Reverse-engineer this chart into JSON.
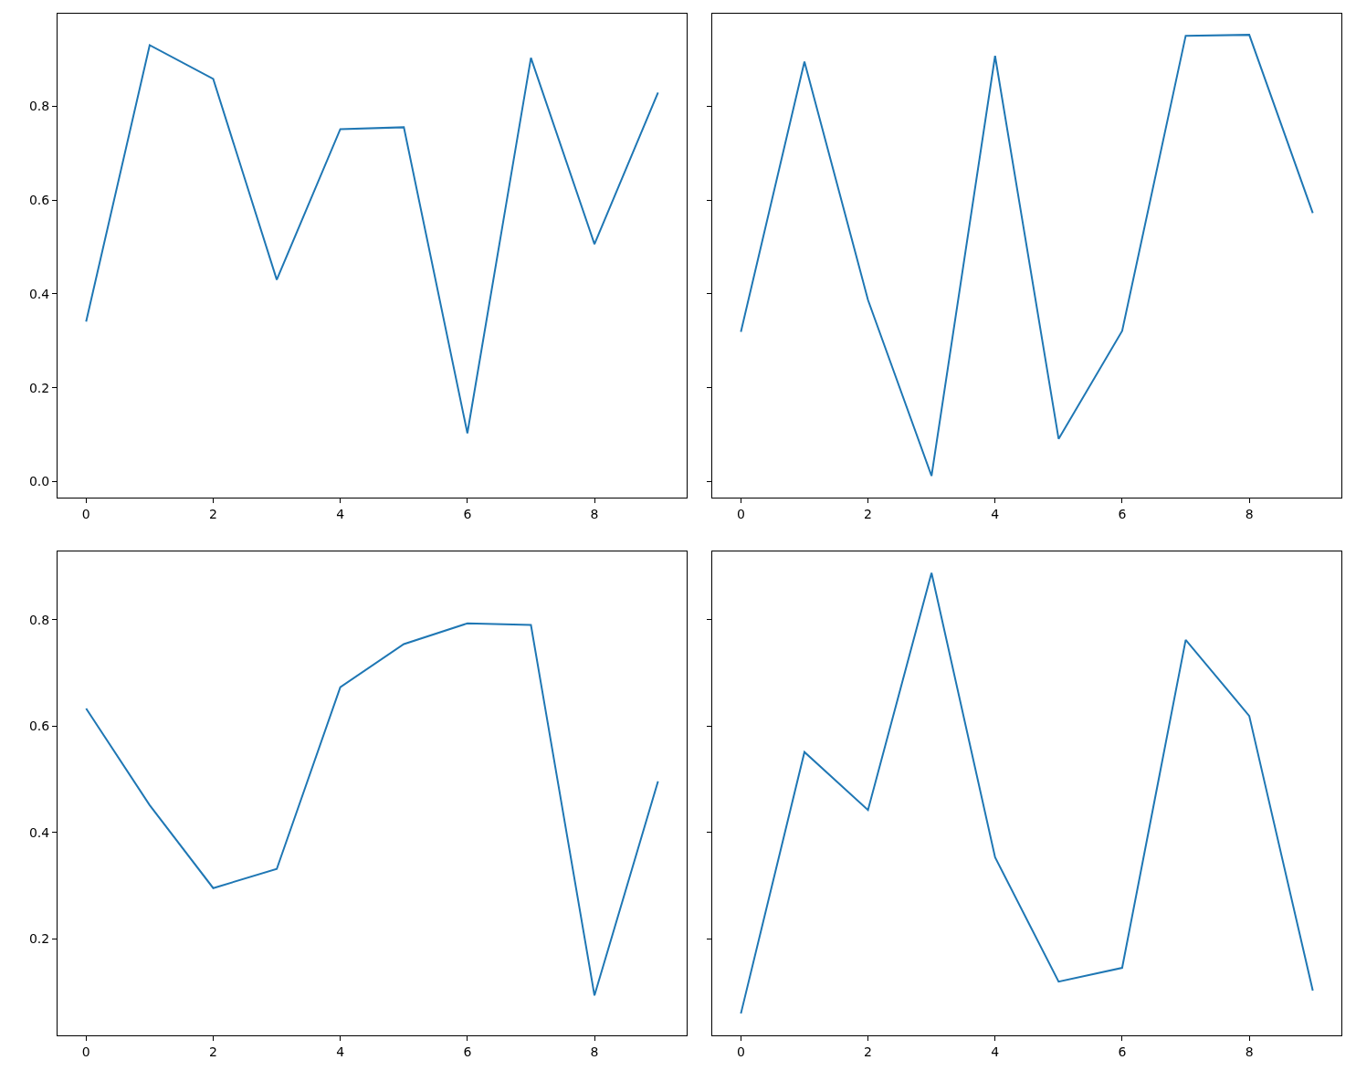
{
  "chart_data": [
    {
      "type": "line",
      "x": [
        0,
        1,
        2,
        3,
        4,
        5,
        6,
        7,
        8,
        9
      ],
      "series": [
        {
          "color": "#1f77b4",
          "values": [
            0.341,
            0.93,
            0.858,
            0.43,
            0.751,
            0.755,
            0.103,
            0.903,
            0.506,
            0.829
          ]
        }
      ],
      "xlim": [
        -0.45,
        9.45
      ],
      "ylim": [
        -0.035,
        0.997
      ],
      "xticks": [
        0,
        2,
        4,
        6,
        8
      ],
      "yticks": [
        {
          "value": 0,
          "label": "0.0"
        },
        {
          "value": 0.2,
          "label": "0.2"
        },
        {
          "value": 0.4,
          "label": "0.4"
        },
        {
          "value": 0.6,
          "label": "0.6"
        },
        {
          "value": 0.8,
          "label": "0.8"
        }
      ]
    },
    {
      "type": "line",
      "x": [
        0,
        1,
        2,
        3,
        4,
        5,
        6,
        7,
        8,
        9
      ],
      "series": [
        {
          "color": "#1f77b4",
          "values": [
            0.319,
            0.895,
            0.387,
            0.012,
            0.907,
            0.091,
            0.321,
            0.95,
            0.952,
            0.572
          ]
        }
      ],
      "xlim": [
        -0.45,
        9.45
      ],
      "ylim": [
        -0.035,
        0.997
      ],
      "xticks": [
        0,
        2,
        4,
        6,
        8
      ],
      "yticks": [
        {
          "value": 0,
          "label": null
        },
        {
          "value": 0.2,
          "label": null
        },
        {
          "value": 0.4,
          "label": null
        },
        {
          "value": 0.6,
          "label": null
        },
        {
          "value": 0.8,
          "label": null
        }
      ],
      "tick_labels": "x"
    },
    {
      "type": "line",
      "x": [
        0,
        1,
        2,
        3,
        4,
        5,
        6,
        7,
        8,
        9
      ],
      "series": [
        {
          "color": "#1f77b4",
          "values": [
            0.633,
            0.451,
            0.295,
            0.331,
            0.673,
            0.754,
            0.793,
            0.79,
            0.093,
            0.496
          ]
        }
      ],
      "xlim": [
        -0.45,
        9.45
      ],
      "ylim": [
        0.018,
        0.929
      ],
      "xticks": [
        0,
        2,
        4,
        6,
        8
      ],
      "yticks": [
        {
          "value": 0.2,
          "label": "0.2"
        },
        {
          "value": 0.4,
          "label": "0.4"
        },
        {
          "value": 0.6,
          "label": "0.6"
        },
        {
          "value": 0.8,
          "label": "0.8"
        }
      ]
    },
    {
      "type": "line",
      "x": [
        0,
        1,
        2,
        3,
        4,
        5,
        6,
        7,
        8,
        9
      ],
      "series": [
        {
          "color": "#1f77b4",
          "values": [
            0.059,
            0.551,
            0.442,
            0.888,
            0.353,
            0.119,
            0.145,
            0.762,
            0.619,
            0.102
          ]
        }
      ],
      "xlim": [
        -0.45,
        9.45
      ],
      "ylim": [
        0.018,
        0.929
      ],
      "xticks": [
        0,
        2,
        4,
        6,
        8
      ],
      "yticks": [
        {
          "value": 0.2,
          "label": null
        },
        {
          "value": 0.4,
          "label": null
        },
        {
          "value": 0.6,
          "label": null
        },
        {
          "value": 0.8,
          "label": null
        }
      ],
      "tick_labels": "x"
    }
  ]
}
